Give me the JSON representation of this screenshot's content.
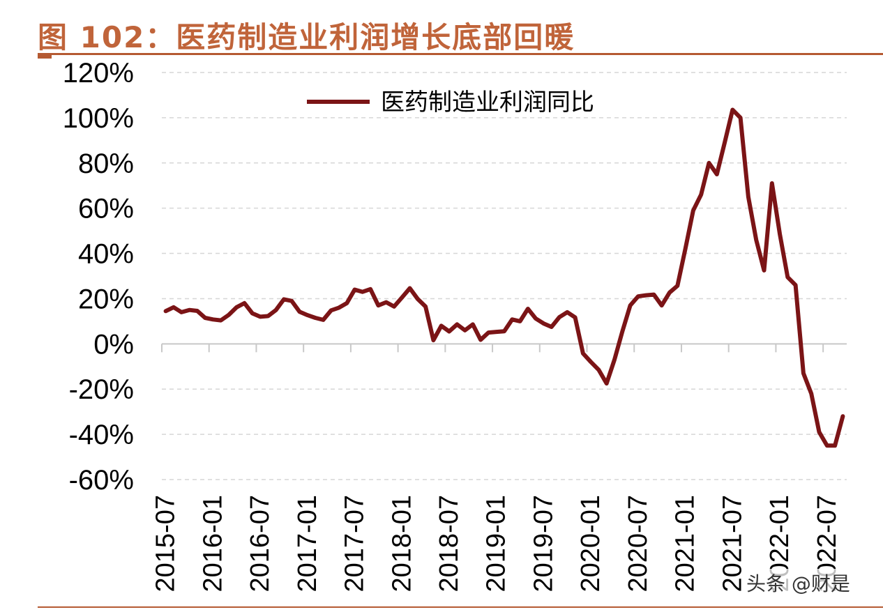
{
  "figure": {
    "title": "图 102：医药制造业利润增长底部回暖",
    "watermark": "头条 @财是",
    "accent_color": "#c0643a",
    "line_color": "#7b1416"
  },
  "chart_data": {
    "type": "line",
    "title": "医药制造业利润增长底部回暖",
    "ylabel": "",
    "xlabel": "",
    "ylim": [
      -60,
      120
    ],
    "yticks": [
      -60,
      -40,
      -20,
      0,
      20,
      40,
      60,
      80,
      100,
      120
    ],
    "ytick_labels": [
      "-60%",
      "-40%",
      "-20%",
      "0%",
      "20%",
      "40%",
      "60%",
      "80%",
      "100%",
      "120%"
    ],
    "x_tick_labels": [
      "2015-07",
      "2016-01",
      "2016-07",
      "2017-01",
      "2017-07",
      "2018-01",
      "2018-07",
      "2019-01",
      "2019-07",
      "2020-01",
      "2020-07",
      "2021-01",
      "2021-07",
      "2022-01",
      "2022-07"
    ],
    "grid": true,
    "legend_position": "top",
    "series": [
      {
        "name": "医药制造业利润同比",
        "color": "#7b1416",
        "x": [
          "2015-07",
          "2015-08",
          "2015-09",
          "2015-10",
          "2015-11",
          "2015-12",
          "2016-01",
          "2016-02",
          "2016-03",
          "2016-04",
          "2016-05",
          "2016-06",
          "2016-07",
          "2016-08",
          "2016-09",
          "2016-10",
          "2016-11",
          "2016-12",
          "2017-01",
          "2017-02",
          "2017-03",
          "2017-04",
          "2017-05",
          "2017-06",
          "2017-07",
          "2017-08",
          "2017-09",
          "2017-10",
          "2017-11",
          "2017-12",
          "2018-01",
          "2018-02",
          "2018-03",
          "2018-04",
          "2018-05",
          "2018-06",
          "2018-07",
          "2018-08",
          "2018-09",
          "2018-10",
          "2018-11",
          "2018-12",
          "2019-01",
          "2019-02",
          "2019-03",
          "2019-04",
          "2019-05",
          "2019-06",
          "2019-07",
          "2019-08",
          "2019-09",
          "2019-10",
          "2019-11",
          "2019-12",
          "2020-01",
          "2020-02",
          "2020-03",
          "2020-04",
          "2020-05",
          "2020-06",
          "2020-07",
          "2020-08",
          "2020-09",
          "2020-10",
          "2020-11",
          "2020-12",
          "2021-01",
          "2021-02",
          "2021-03",
          "2021-04",
          "2021-05",
          "2021-06",
          "2021-07",
          "2021-08",
          "2021-09",
          "2021-10",
          "2021-11",
          "2021-12",
          "2022-01",
          "2022-02",
          "2022-03",
          "2022-04",
          "2022-05",
          "2022-06",
          "2022-07",
          "2022-08",
          "2022-09"
        ],
        "values": [
          14.5,
          16.2,
          14.0,
          15.0,
          14.6,
          11.5,
          10.8,
          10.4,
          12.8,
          16.2,
          18.0,
          13.5,
          12.0,
          12.3,
          15.0,
          19.7,
          19.0,
          14.2,
          12.7,
          11.5,
          10.6,
          14.8,
          16.0,
          18.0,
          24.0,
          23.0,
          24.2,
          17.0,
          18.4,
          16.5,
          20.5,
          24.6,
          19.9,
          16.5,
          1.6,
          8.0,
          5.5,
          8.6,
          6.0,
          8.6,
          1.8,
          5.0,
          5.3,
          5.6,
          10.8,
          10.0,
          15.5,
          11.2,
          9.0,
          7.5,
          11.8,
          14.0,
          11.7,
          -4.2,
          -8.0,
          -11.5,
          -17.5,
          -7.0,
          5.5,
          17.0,
          21.0,
          21.5,
          21.8,
          17.0,
          22.7,
          25.7,
          42.0,
          59.0,
          66.0,
          80.0,
          75.0,
          89.0,
          103.5,
          100.0,
          65.0,
          46.0,
          32.5,
          71.0,
          48.5,
          29.5,
          26.0,
          -13.0,
          -22.0,
          -39.0,
          -45.0,
          -45.0,
          -32.0
        ]
      }
    ]
  }
}
